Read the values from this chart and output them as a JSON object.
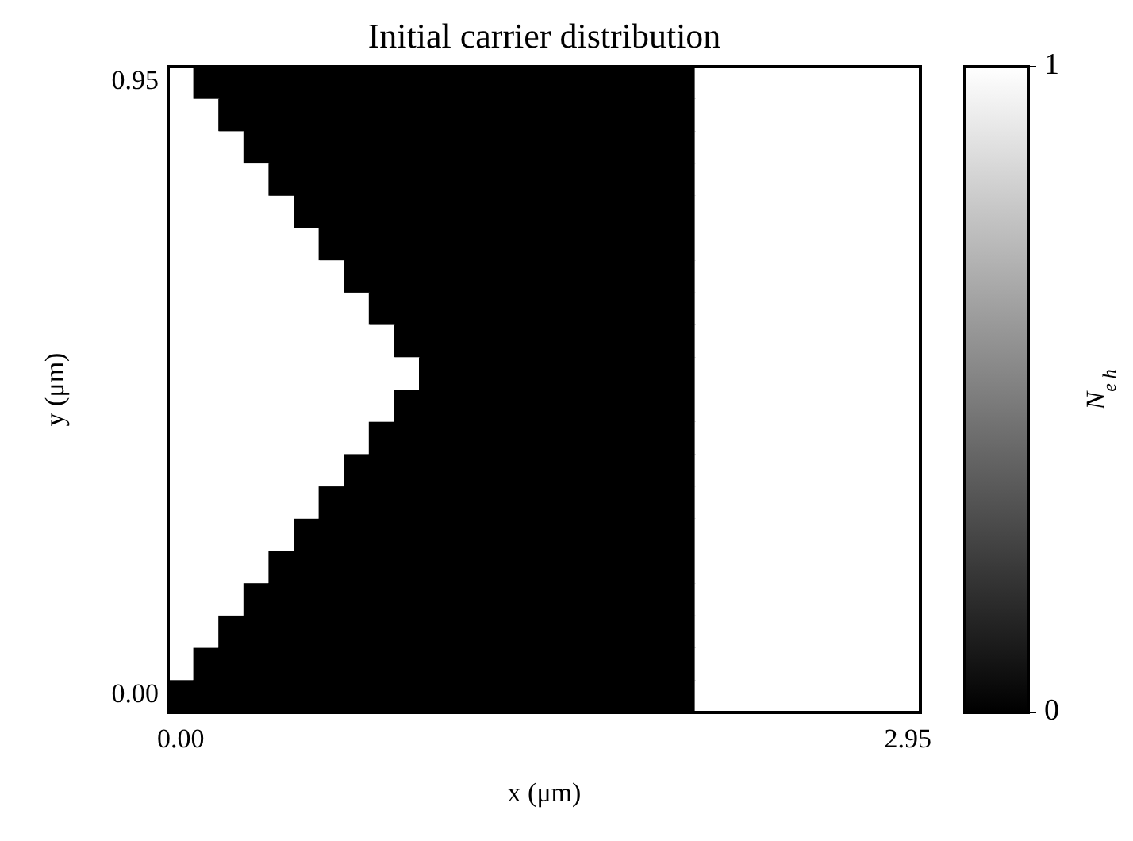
{
  "chart_data": {
    "type": "heatmap",
    "title": "Initial carrier distribution",
    "xlabel": "x (μm)",
    "ylabel": "y (μm)",
    "clabel": "N$_{e h}$",
    "categories": [
      "0.00",
      null,
      null,
      null,
      null,
      null,
      null,
      null,
      null,
      null,
      null,
      null,
      null,
      null,
      null,
      null,
      null,
      null,
      null,
      null,
      null,
      null,
      null,
      null,
      null,
      null,
      null,
      null,
      null,
      "2.95"
    ],
    "y_categories": [
      "0.95",
      null,
      null,
      null,
      null,
      null,
      null,
      null,
      null,
      null,
      null,
      null,
      null,
      null,
      null,
      null,
      null,
      null,
      null,
      "0.00"
    ],
    "clim": [
      0,
      1
    ],
    "cticks": [
      0,
      1
    ],
    "cells": [
      [
        1,
        0,
        0,
        0,
        0,
        0,
        0,
        0,
        0,
        0,
        0,
        0,
        0,
        0,
        0,
        0,
        0,
        0,
        0,
        0,
        0,
        1,
        1,
        1,
        1,
        1,
        1,
        1,
        1,
        1
      ],
      [
        1,
        1,
        0,
        0,
        0,
        0,
        0,
        0,
        0,
        0,
        0,
        0,
        0,
        0,
        0,
        0,
        0,
        0,
        0,
        0,
        0,
        1,
        1,
        1,
        1,
        1,
        1,
        1,
        1,
        1
      ],
      [
        1,
        1,
        1,
        0,
        0,
        0,
        0,
        0,
        0,
        0,
        0,
        0,
        0,
        0,
        0,
        0,
        0,
        0,
        0,
        0,
        0,
        1,
        1,
        1,
        1,
        1,
        1,
        1,
        1,
        1
      ],
      [
        1,
        1,
        1,
        1,
        0,
        0,
        0,
        0,
        0,
        0,
        0,
        0,
        0,
        0,
        0,
        0,
        0,
        0,
        0,
        0,
        0,
        1,
        1,
        1,
        1,
        1,
        1,
        1,
        1,
        1
      ],
      [
        1,
        1,
        1,
        1,
        1,
        0,
        0,
        0,
        0,
        0,
        0,
        0,
        0,
        0,
        0,
        0,
        0,
        0,
        0,
        0,
        0,
        1,
        1,
        1,
        1,
        1,
        1,
        1,
        1,
        1
      ],
      [
        1,
        1,
        1,
        1,
        1,
        1,
        0,
        0,
        0,
        0,
        0,
        0,
        0,
        0,
        0,
        0,
        0,
        0,
        0,
        0,
        0,
        1,
        1,
        1,
        1,
        1,
        1,
        1,
        1,
        1
      ],
      [
        1,
        1,
        1,
        1,
        1,
        1,
        1,
        0,
        0,
        0,
        0,
        0,
        0,
        0,
        0,
        0,
        0,
        0,
        0,
        0,
        0,
        1,
        1,
        1,
        1,
        1,
        1,
        1,
        1,
        1
      ],
      [
        1,
        1,
        1,
        1,
        1,
        1,
        1,
        1,
        0,
        0,
        0,
        0,
        0,
        0,
        0,
        0,
        0,
        0,
        0,
        0,
        0,
        1,
        1,
        1,
        1,
        1,
        1,
        1,
        1,
        1
      ],
      [
        1,
        1,
        1,
        1,
        1,
        1,
        1,
        1,
        1,
        0,
        0,
        0,
        0,
        0,
        0,
        0,
        0,
        0,
        0,
        0,
        0,
        1,
        1,
        1,
        1,
        1,
        1,
        1,
        1,
        1
      ],
      [
        1,
        1,
        1,
        1,
        1,
        1,
        1,
        1,
        1,
        1,
        0,
        0,
        0,
        0,
        0,
        0,
        0,
        0,
        0,
        0,
        0,
        1,
        1,
        1,
        1,
        1,
        1,
        1,
        1,
        1
      ],
      [
        1,
        1,
        1,
        1,
        1,
        1,
        1,
        1,
        1,
        0,
        0,
        0,
        0,
        0,
        0,
        0,
        0,
        0,
        0,
        0,
        0,
        1,
        1,
        1,
        1,
        1,
        1,
        1,
        1,
        1
      ],
      [
        1,
        1,
        1,
        1,
        1,
        1,
        1,
        1,
        0,
        0,
        0,
        0,
        0,
        0,
        0,
        0,
        0,
        0,
        0,
        0,
        0,
        1,
        1,
        1,
        1,
        1,
        1,
        1,
        1,
        1
      ],
      [
        1,
        1,
        1,
        1,
        1,
        1,
        1,
        0,
        0,
        0,
        0,
        0,
        0,
        0,
        0,
        0,
        0,
        0,
        0,
        0,
        0,
        1,
        1,
        1,
        1,
        1,
        1,
        1,
        1,
        1
      ],
      [
        1,
        1,
        1,
        1,
        1,
        1,
        0,
        0,
        0,
        0,
        0,
        0,
        0,
        0,
        0,
        0,
        0,
        0,
        0,
        0,
        0,
        1,
        1,
        1,
        1,
        1,
        1,
        1,
        1,
        1
      ],
      [
        1,
        1,
        1,
        1,
        1,
        0,
        0,
        0,
        0,
        0,
        0,
        0,
        0,
        0,
        0,
        0,
        0,
        0,
        0,
        0,
        0,
        1,
        1,
        1,
        1,
        1,
        1,
        1,
        1,
        1
      ],
      [
        1,
        1,
        1,
        1,
        0,
        0,
        0,
        0,
        0,
        0,
        0,
        0,
        0,
        0,
        0,
        0,
        0,
        0,
        0,
        0,
        0,
        1,
        1,
        1,
        1,
        1,
        1,
        1,
        1,
        1
      ],
      [
        1,
        1,
        1,
        0,
        0,
        0,
        0,
        0,
        0,
        0,
        0,
        0,
        0,
        0,
        0,
        0,
        0,
        0,
        0,
        0,
        0,
        1,
        1,
        1,
        1,
        1,
        1,
        1,
        1,
        1
      ],
      [
        1,
        1,
        0,
        0,
        0,
        0,
        0,
        0,
        0,
        0,
        0,
        0,
        0,
        0,
        0,
        0,
        0,
        0,
        0,
        0,
        0,
        1,
        1,
        1,
        1,
        1,
        1,
        1,
        1,
        1
      ],
      [
        1,
        0,
        0,
        0,
        0,
        0,
        0,
        0,
        0,
        0,
        0,
        0,
        0,
        0,
        0,
        0,
        0,
        0,
        0,
        0,
        0,
        1,
        1,
        1,
        1,
        1,
        1,
        1,
        1,
        1
      ],
      [
        0,
        0,
        0,
        0,
        0,
        0,
        0,
        0,
        0,
        0,
        0,
        0,
        0,
        0,
        0,
        0,
        0,
        0,
        0,
        0,
        0,
        1,
        1,
        1,
        1,
        1,
        1,
        1,
        1,
        1
      ]
    ]
  }
}
